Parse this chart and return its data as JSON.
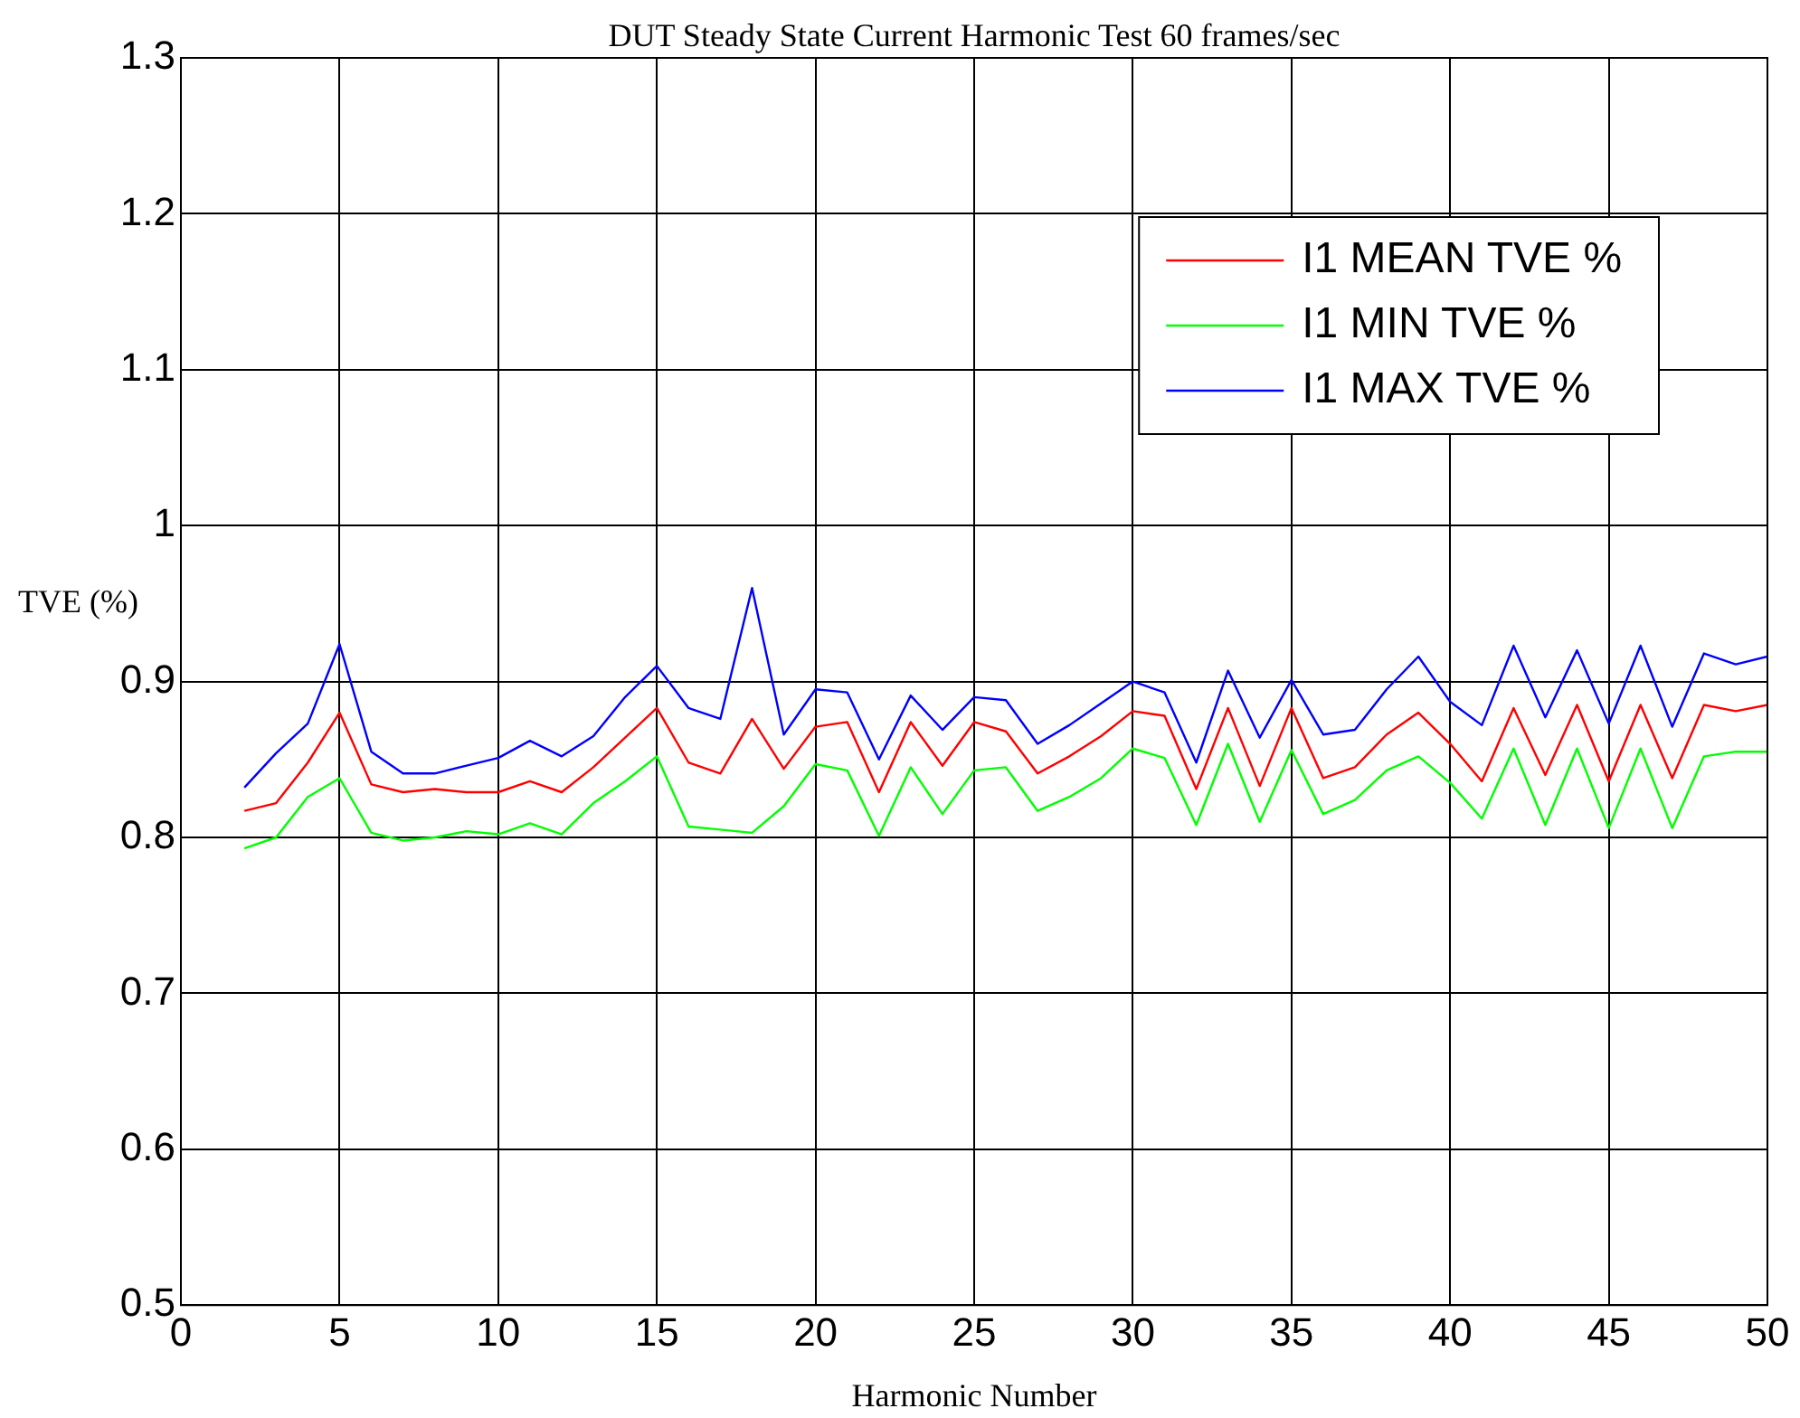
{
  "chart_data": {
    "type": "line",
    "title": "DUT Steady State Current Harmonic Test 60 frames/sec",
    "xlabel": "Harmonic Number",
    "ylabel": "TVE (%)",
    "x": [
      2,
      3,
      4,
      5,
      6,
      7,
      8,
      9,
      10,
      11,
      12,
      13,
      14,
      15,
      16,
      17,
      18,
      19,
      20,
      21,
      22,
      23,
      24,
      25,
      26,
      27,
      28,
      29,
      30,
      31,
      32,
      33,
      34,
      35,
      36,
      37,
      38,
      39,
      40,
      41,
      42,
      43,
      44,
      45,
      46,
      47,
      48,
      49,
      50
    ],
    "series": [
      {
        "name": "I1 MEAN TVE %",
        "color": "#ff0000",
        "values": [
          0.817,
          0.822,
          0.848,
          0.88,
          0.834,
          0.829,
          0.831,
          0.829,
          0.829,
          0.836,
          0.829,
          0.845,
          0.864,
          0.883,
          0.848,
          0.841,
          0.876,
          0.844,
          0.871,
          0.874,
          0.829,
          0.874,
          0.846,
          0.874,
          0.868,
          0.841,
          0.852,
          0.865,
          0.881,
          0.878,
          0.831,
          0.883,
          0.833,
          0.883,
          0.838,
          0.845,
          0.866,
          0.88,
          0.86,
          0.836,
          0.883,
          0.84,
          0.885,
          0.836,
          0.885,
          0.838,
          0.885,
          0.881,
          0.885
        ]
      },
      {
        "name": "I1 MIN TVE %",
        "color": "#00ff00",
        "values": [
          0.793,
          0.8,
          0.826,
          0.838,
          0.803,
          0.798,
          0.8,
          0.804,
          0.802,
          0.809,
          0.802,
          0.822,
          0.836,
          0.852,
          0.807,
          0.805,
          0.803,
          0.82,
          0.847,
          0.843,
          0.801,
          0.845,
          0.815,
          0.843,
          0.845,
          0.817,
          0.826,
          0.838,
          0.857,
          0.851,
          0.808,
          0.86,
          0.81,
          0.856,
          0.815,
          0.824,
          0.843,
          0.852,
          0.835,
          0.812,
          0.857,
          0.808,
          0.857,
          0.806,
          0.857,
          0.806,
          0.852,
          0.855,
          0.855
        ]
      },
      {
        "name": "I1 MAX TVE %",
        "color": "#0000ff",
        "values": [
          0.832,
          0.854,
          0.873,
          0.924,
          0.855,
          0.841,
          0.841,
          0.846,
          0.851,
          0.862,
          0.852,
          0.865,
          0.89,
          0.91,
          0.883,
          0.876,
          0.96,
          0.866,
          0.895,
          0.893,
          0.85,
          0.891,
          0.869,
          0.89,
          0.888,
          0.86,
          0.872,
          0.886,
          0.9,
          0.893,
          0.848,
          0.907,
          0.864,
          0.901,
          0.866,
          0.869,
          0.895,
          0.916,
          0.887,
          0.872,
          0.923,
          0.877,
          0.92,
          0.873,
          0.923,
          0.871,
          0.918,
          0.911,
          0.916
        ]
      }
    ],
    "xlim": [
      0,
      50
    ],
    "xticks": [
      0,
      5,
      10,
      15,
      20,
      25,
      30,
      35,
      40,
      45,
      50
    ],
    "ylim": [
      0.5,
      1.3
    ],
    "yticks": [
      0.5,
      0.6,
      0.7,
      0.8,
      0.9,
      1,
      1.1,
      1.2,
      1.3
    ],
    "grid": true,
    "legend": "top right",
    "marker": "none",
    "line_style": "solid"
  }
}
